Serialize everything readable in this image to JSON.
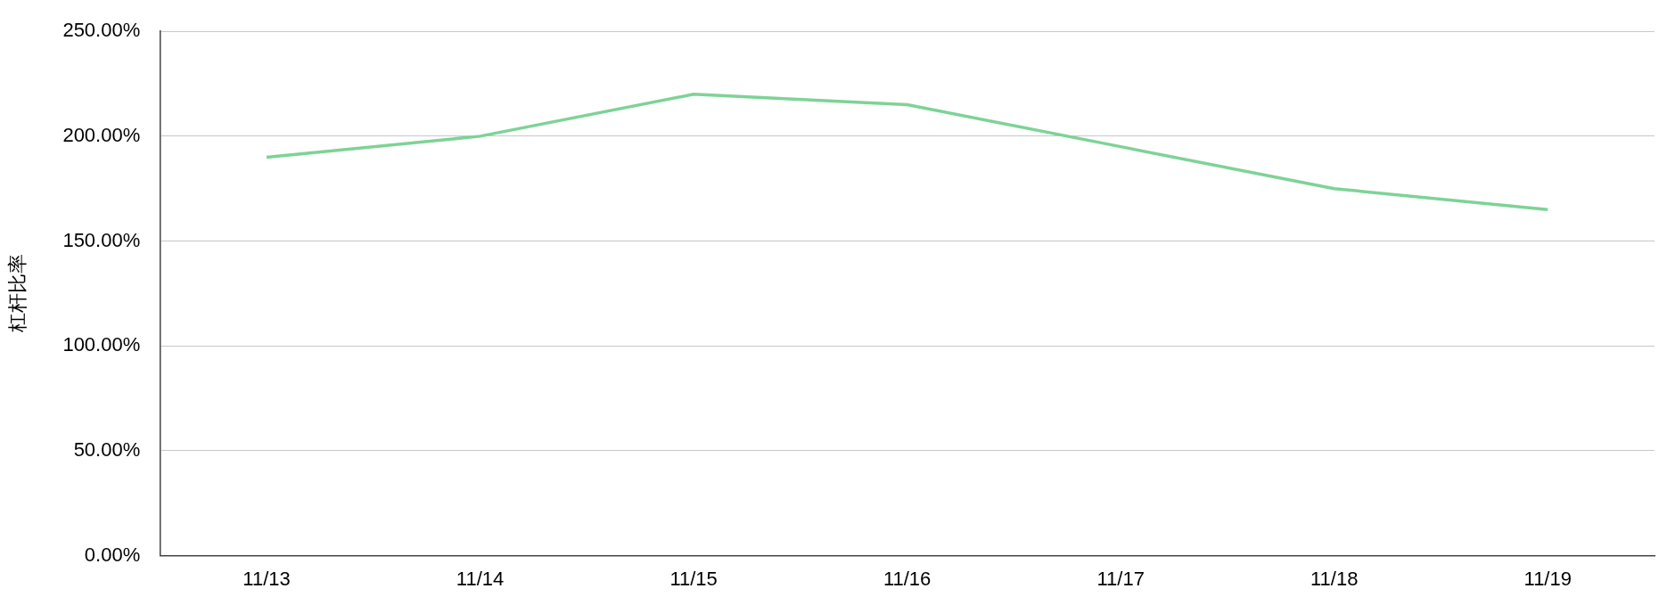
{
  "chart_data": {
    "type": "line",
    "ylabel": "杠杆比率",
    "categories": [
      "11/13",
      "11/14",
      "11/15",
      "11/16",
      "11/17",
      "11/18",
      "11/19"
    ],
    "series": [
      {
        "color": "#7dd396",
        "values": [
          190,
          200,
          220,
          215,
          195,
          175,
          165
        ]
      }
    ],
    "ylim": [
      0,
      250
    ],
    "yticks": [
      {
        "value": 0,
        "label": "0.00%"
      },
      {
        "value": 50,
        "label": "50.00%"
      },
      {
        "value": 100,
        "label": "100.00%"
      },
      {
        "value": 150,
        "label": "150.00%"
      },
      {
        "value": 200,
        "label": "200.00%"
      },
      {
        "value": 250,
        "label": "250.00%"
      }
    ],
    "grid": "y",
    "legend": false,
    "marker": "none",
    "line_style": "solid"
  }
}
